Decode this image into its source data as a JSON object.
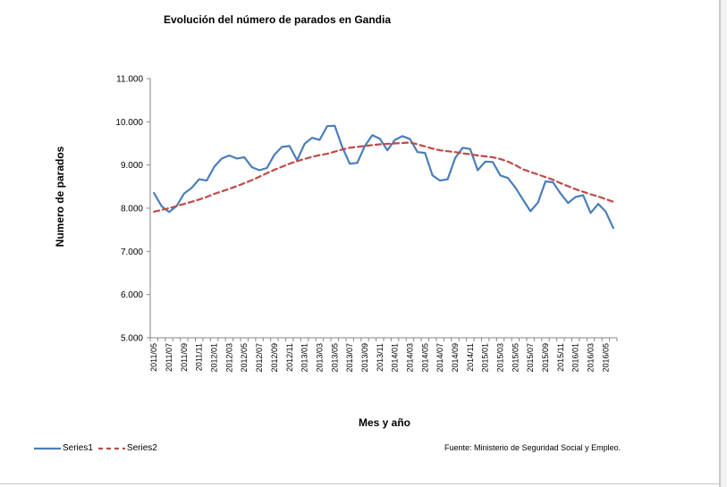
{
  "chart_data": {
    "type": "line",
    "title": "Evolución del número de parados en Gandia",
    "xlabel": "Mes y año",
    "ylabel": "Numero de parados",
    "ylim": [
      5000,
      11000
    ],
    "ytick_labels": [
      "5.000",
      "6.000",
      "7.000",
      "8.000",
      "9.000",
      "10.000",
      "11.000"
    ],
    "ytick_values": [
      5000,
      6000,
      7000,
      8000,
      9000,
      10000,
      11000
    ],
    "x": [
      "2011/05",
      "2011/06",
      "2011/07",
      "2011/08",
      "2011/09",
      "2011/10",
      "2011/11",
      "2011/12",
      "2012/01",
      "2012/02",
      "2012/03",
      "2012/04",
      "2012/05",
      "2012/06",
      "2012/07",
      "2012/08",
      "2012/09",
      "2012/10",
      "2012/11",
      "2012/12",
      "2013/01",
      "2013/02",
      "2013/03",
      "2013/04",
      "2013/05",
      "2013/06",
      "2013/07",
      "2013/08",
      "2013/09",
      "2013/10",
      "2013/11",
      "2013/12",
      "2014/01",
      "2014/02",
      "2014/03",
      "2014/04",
      "2014/05",
      "2014/06",
      "2014/07",
      "2014/08",
      "2014/09",
      "2014/10",
      "2014/11",
      "2014/12",
      "2015/01",
      "2015/02",
      "2015/03",
      "2015/04",
      "2015/05",
      "2015/06",
      "2015/07",
      "2015/08",
      "2015/09",
      "2015/10",
      "2015/11",
      "2015/12",
      "2016/01",
      "2016/02",
      "2016/03",
      "2016/04",
      "2016/05",
      "2016/06"
    ],
    "x_tick_labels": [
      "2011/05",
      "2011/07",
      "2011/09",
      "2011/11",
      "2012/01",
      "2012/03",
      "2012/05",
      "2012/07",
      "2012/09",
      "2012/11",
      "2013/01",
      "2013/03",
      "2013/05",
      "2013/07",
      "2013/09",
      "2013/11",
      "2014/01",
      "2014/03",
      "2014/05",
      "2014/07",
      "2014/09",
      "2014/11",
      "2015/01",
      "2015/03",
      "2015/05",
      "2015/07",
      "2015/09",
      "2015/11",
      "2016/01",
      "2016/03",
      "2016/05"
    ],
    "series": [
      {
        "name": "Series1",
        "color": "#4a7ebb",
        "dash": "solid",
        "values": [
          8350,
          8050,
          7910,
          8050,
          8340,
          8470,
          8670,
          8640,
          8960,
          9150,
          9220,
          9150,
          9180,
          8950,
          8880,
          8930,
          9240,
          9420,
          9440,
          9110,
          9490,
          9630,
          9580,
          9900,
          9910,
          9420,
          9030,
          9050,
          9440,
          9690,
          9610,
          9340,
          9580,
          9670,
          9600,
          9300,
          9280,
          8760,
          8640,
          8670,
          9160,
          9400,
          9370,
          8880,
          9080,
          9070,
          8760,
          8700,
          8480,
          8200,
          7930,
          8130,
          8620,
          8600,
          8340,
          8120,
          8260,
          8300,
          7890,
          8100,
          7920,
          7540
        ]
      },
      {
        "name": "Series2",
        "color": "#be4b48",
        "dash": "dashed",
        "values": [
          7920,
          7960,
          8000,
          8050,
          8100,
          8150,
          8200,
          8260,
          8330,
          8390,
          8450,
          8510,
          8580,
          8650,
          8730,
          8810,
          8890,
          8960,
          9030,
          9090,
          9140,
          9190,
          9230,
          9260,
          9310,
          9360,
          9400,
          9420,
          9440,
          9460,
          9480,
          9490,
          9500,
          9510,
          9520,
          9480,
          9430,
          9380,
          9340,
          9320,
          9300,
          9270,
          9250,
          9220,
          9200,
          9180,
          9140,
          9080,
          9000,
          8900,
          8840,
          8780,
          8720,
          8660,
          8580,
          8510,
          8440,
          8380,
          8320,
          8270,
          8210,
          8150
        ]
      }
    ]
  },
  "legend": {
    "series1_label": "Series1",
    "series2_label": "Series2"
  },
  "source_note": "Fuente: Ministerio  de Seguridad  Social  y Empleo."
}
